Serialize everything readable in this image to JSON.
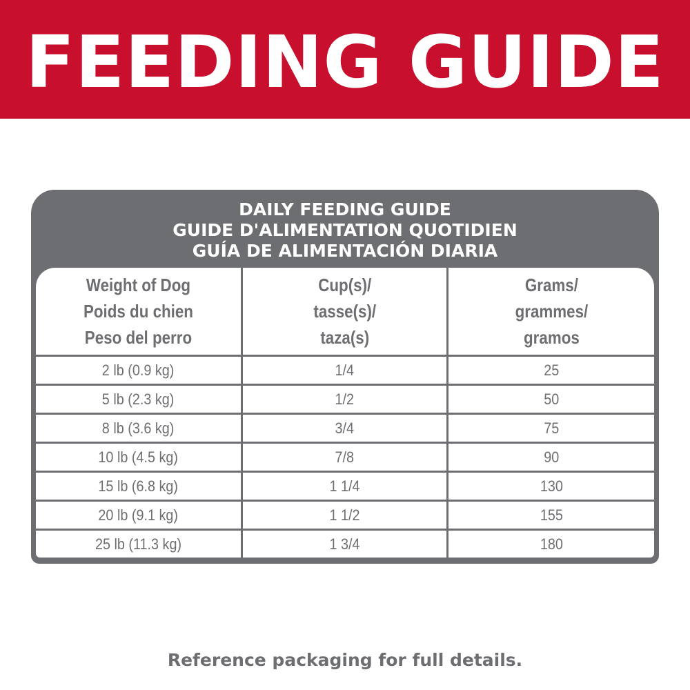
{
  "banner": {
    "title": "FEEDING GUIDE",
    "color": "#c8102e"
  },
  "card": {
    "color": "#6d6e71",
    "title_lines": [
      "DAILY FEEDING GUIDE",
      "GUIDE D'ALIMENTATION QUOTIDIEN",
      "GUÍA DE ALIMENTACIÓN DIARIA"
    ],
    "headers": [
      [
        "Weight of Dog",
        "Poids du chien",
        "Peso del perro"
      ],
      [
        "Cup(s)/",
        "tasse(s)/",
        "taza(s)"
      ],
      [
        "Grams/",
        "grammes/",
        "gramos"
      ]
    ],
    "rows": [
      {
        "weight": "2 lb (0.9 kg)",
        "cups": "1/4",
        "grams": "25"
      },
      {
        "weight": "5 lb (2.3 kg)",
        "cups": "1/2",
        "grams": "50"
      },
      {
        "weight": "8 lb (3.6 kg)",
        "cups": "3/4",
        "grams": "75"
      },
      {
        "weight": "10 lb (4.5 kg)",
        "cups": "7/8",
        "grams": "90"
      },
      {
        "weight": "15 lb (6.8 kg)",
        "cups": "1 1/4",
        "grams": "130"
      },
      {
        "weight": "20 lb (9.1 kg)",
        "cups": "1 1/2",
        "grams": "155"
      },
      {
        "weight": "25 lb (11.3 kg)",
        "cups": "1 3/4",
        "grams": "180"
      }
    ]
  },
  "footer": {
    "note": "Reference packaging for full details."
  }
}
